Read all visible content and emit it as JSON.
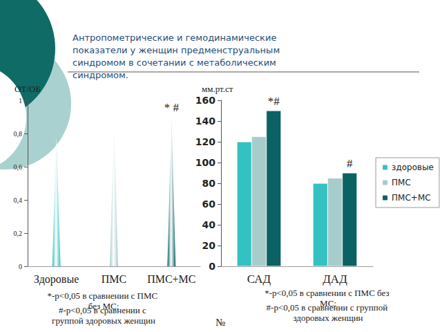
{
  "title": "Антропометрические и гемодинамические показатели у женщин предменструальным синдромом в сочетании с метаболическим синдромом.",
  "page_mark": "№",
  "chart_data": [
    {
      "type": "bar",
      "marker": "cone",
      "y_label": "ОТ/ОБ",
      "categories": [
        "Здоровые",
        "ПМС",
        "ПМС+МС"
      ],
      "values": [
        0.78,
        0.86,
        0.9
      ],
      "colors": [
        "#33c2c2",
        "#a6cccc",
        "#0b6262"
      ],
      "ylim": [
        0,
        1
      ],
      "yticks": [
        0,
        {
          "value": 0.2,
          "label": "0,2"
        },
        {
          "value": 0.4,
          "label": "0,4"
        },
        {
          "value": 0.6,
          "label": "0,6"
        },
        {
          "value": 0.8,
          "label": "0,8"
        },
        1
      ],
      "grid": false,
      "annotations": [
        {
          "text": "* #",
          "category": "ПМС+МС"
        }
      ],
      "notes": [
        "*-p<0,05 в сравнении с ПМС без МС;",
        "#-p<0,05 в сравнении с группой здоровых женщин"
      ]
    },
    {
      "type": "bar",
      "y_label": "мм.рт.ст",
      "categories": [
        "САД",
        "ДАД"
      ],
      "series": [
        {
          "name": "здоровые",
          "color": "#33c2c2",
          "values": [
            120,
            80
          ]
        },
        {
          "name": "ПМС",
          "color": "#a6cccc",
          "values": [
            125,
            85
          ]
        },
        {
          "name": "ПМС+МС",
          "color": "#0b6262",
          "values": [
            150,
            90
          ]
        }
      ],
      "ylim": [
        0,
        160
      ],
      "yticks": [
        0,
        20,
        40,
        60,
        80,
        100,
        120,
        140,
        160
      ],
      "grid": false,
      "legend": "right",
      "annotations": [
        {
          "text": "*#",
          "series": "ПМС+МС",
          "category": "САД"
        },
        {
          "text": "#",
          "series": "ПМС+МС",
          "category": "ДАД"
        }
      ],
      "notes": [
        "*-p<0,05 в сравнении с ПМС без МС;",
        "#-p<0,05 в сравнении с группой здоровых женщин"
      ]
    }
  ]
}
